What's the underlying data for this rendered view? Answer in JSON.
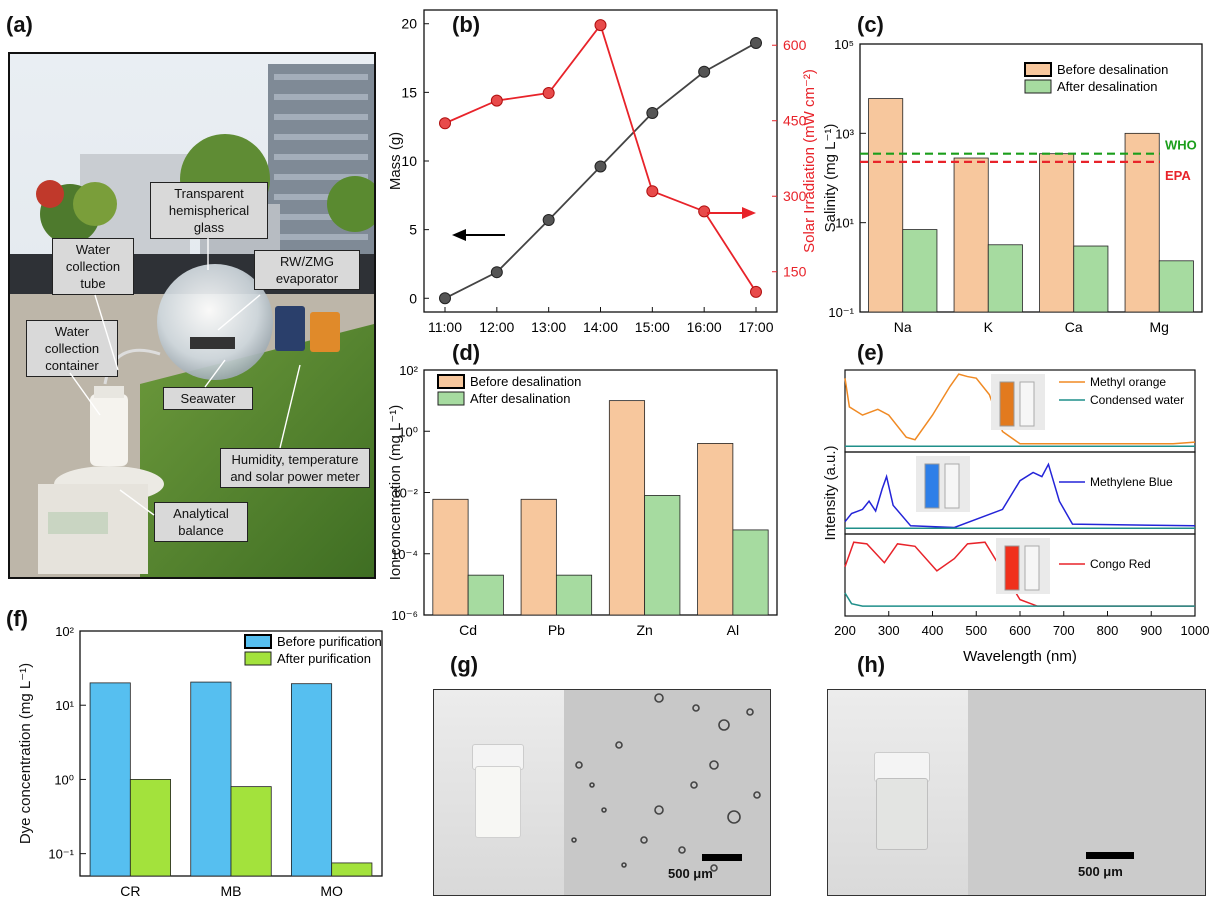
{
  "panels": {
    "a": {
      "label": "(a)",
      "callouts": {
        "glass": "Transparent hemispherical glass",
        "tube": "Water collection tube",
        "evap": "RW/ZMG evaporator",
        "container": "Water collection container",
        "seawater": "Seawater",
        "meter": "Humidity, temperature and solar power meter",
        "balance": "Analytical balance"
      }
    },
    "b": {
      "label": "(b)"
    },
    "c": {
      "label": "(c)"
    },
    "d": {
      "label": "(d)"
    },
    "e": {
      "label": "(e)"
    },
    "f": {
      "label": "(f)"
    },
    "g": {
      "label": "(g)",
      "scale": "500 μm"
    },
    "h": {
      "label": "(h)",
      "scale": "500  μm"
    }
  },
  "colors": {
    "before_ion": "#f7c79d",
    "after_ion": "#a6dba0",
    "red": "#e8232a",
    "dark": "#444444",
    "before_dye": "#56bff0",
    "after_dye": "#a3e23c",
    "who": "#1b9e1b",
    "epa": "#e8232a"
  },
  "chart_data": [
    {
      "panel": "b",
      "type": "line",
      "x": [
        "11:00",
        "12:00",
        "13:00",
        "14:00",
        "15:00",
        "16:00",
        "17:00"
      ],
      "series": [
        {
          "values": [
            0,
            1.9,
            5.7,
            9.6,
            13.5,
            16.5,
            18.6
          ],
          "axis": "left"
        },
        {
          "values": [
            445,
            490,
            505,
            640,
            310,
            270,
            110
          ],
          "axis": "right"
        }
      ],
      "ylabel": "Mass (g)",
      "ylim": [
        -1,
        21
      ],
      "yticks": [
        0,
        5,
        10,
        15,
        20
      ],
      "y2label": "Solar Irradiation (mW cm⁻²)",
      "y2lim": [
        70,
        670
      ],
      "y2ticks": [
        150,
        300,
        450,
        600
      ]
    },
    {
      "panel": "c",
      "type": "bar",
      "categories": [
        "Na",
        "K",
        "Ca",
        "Mg"
      ],
      "series": [
        {
          "name": "Before desalination",
          "values": [
            6000,
            280,
            350,
            1000
          ]
        },
        {
          "name": "After desalination",
          "values": [
            7,
            3.2,
            3.0,
            1.4
          ]
        }
      ],
      "ylabel": "Salinity (mg L⁻¹)",
      "yscale": "log",
      "ylim": [
        0.1,
        100000
      ],
      "yticks": [
        "10⁻¹",
        "10¹",
        "10³",
        "10⁵"
      ],
      "reference_lines": [
        {
          "label": "WHO",
          "value": 350
        },
        {
          "label": "EPA",
          "value": 230
        }
      ]
    },
    {
      "panel": "d",
      "type": "bar",
      "categories": [
        "Cd",
        "Pb",
        "Zn",
        "Al"
      ],
      "series": [
        {
          "name": "Before desalination",
          "values": [
            0.006,
            0.006,
            10,
            0.4
          ]
        },
        {
          "name": "After desalination",
          "values": [
            2e-05,
            2e-05,
            0.008,
            0.0006
          ]
        }
      ],
      "ylabel": "Ion concentration (mg L⁻¹)",
      "yscale": "log",
      "ylim": [
        1e-06,
        100
      ],
      "yticks": [
        "10⁻⁶",
        "10⁻⁴",
        "10⁻²",
        "10⁰",
        "10²"
      ]
    },
    {
      "panel": "e",
      "type": "line",
      "xlabel": "Wavelength (nm)",
      "ylabel": "Intensity (a.u.)",
      "xlim": [
        200,
        1000
      ],
      "xticks": [
        200,
        300,
        400,
        500,
        600,
        700,
        800,
        900,
        1000
      ],
      "legends": [
        "Methyl orange",
        "Condensed water",
        "Methylene Blue",
        "Congo Red"
      ]
    },
    {
      "panel": "f",
      "type": "bar",
      "categories": [
        "CR",
        "MB",
        "MO"
      ],
      "series": [
        {
          "name": "Before purification",
          "values": [
            20,
            20.5,
            19.5
          ]
        },
        {
          "name": "After purification",
          "values": [
            1.0,
            0.8,
            0.075
          ]
        }
      ],
      "ylabel": "Dye concentration (mg L⁻¹)",
      "yscale": "log",
      "ylim": [
        0.05,
        100
      ],
      "yticks": [
        "10⁻¹",
        "10⁰",
        "10¹",
        "10²"
      ]
    }
  ]
}
